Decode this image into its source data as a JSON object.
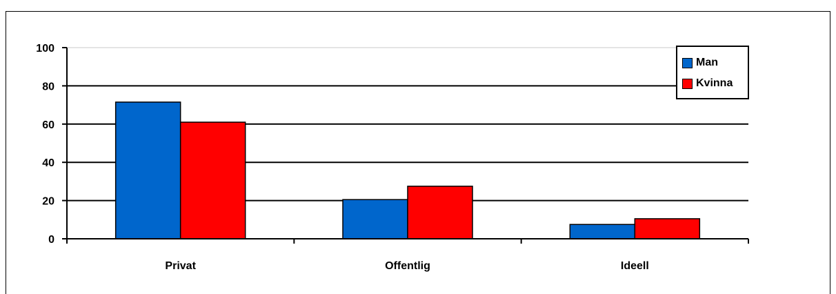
{
  "chart_data": {
    "type": "bar",
    "categories": [
      "Privat",
      "Offentlig",
      "Ideell"
    ],
    "series": [
      {
        "name": "Man",
        "color": "#0066cc",
        "values": [
          71.5,
          20.5,
          7.5
        ]
      },
      {
        "name": "Kvinna",
        "color": "#ff0000",
        "values": [
          61,
          27.5,
          10.5
        ]
      }
    ],
    "yticks": [
      "0",
      "20",
      "40",
      "60",
      "80",
      "100"
    ],
    "ylim": [
      0,
      100
    ],
    "grid": true,
    "legend_position": "top-right"
  }
}
